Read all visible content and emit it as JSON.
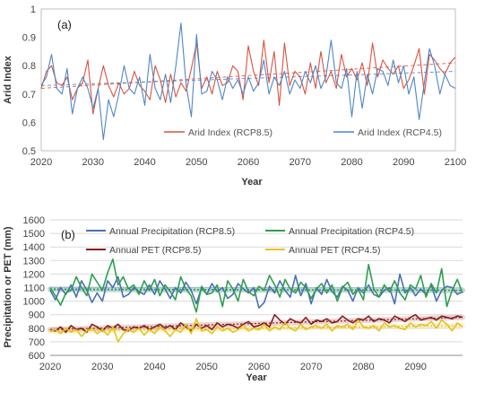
{
  "figure": {
    "panel_a_label": "(a)",
    "panel_b_label": "(b)"
  },
  "colors": {
    "rcp85": "#d9533f",
    "rcp45": "#4f86c6",
    "precip85": "#4a6fb5",
    "precip45": "#2e9e4f",
    "pet85": "#8b1d1d",
    "pet45": "#e8c21a",
    "axis": "#8c8c8c",
    "grid": "#d9d9d9"
  },
  "chart_data": [
    {
      "type": "line",
      "panel": "a",
      "title": "",
      "xlabel": "Year",
      "ylabel": "Arid Index",
      "xlim": [
        2020,
        2100
      ],
      "ylim": [
        0.5,
        1.0
      ],
      "xticks": [
        2020,
        2030,
        2040,
        2050,
        2060,
        2070,
        2080,
        2090,
        2100
      ],
      "yticks": [
        0.5,
        0.6,
        0.7,
        0.8,
        0.9,
        1.0
      ],
      "ytick_labels": [
        "0.5",
        "0.6",
        "0.7",
        "0.8",
        "0.9",
        "1"
      ],
      "grid": false,
      "legend_position": "bottom-right",
      "series": [
        {
          "name": "Arid Index (RCP8.5)",
          "x_start": 2020,
          "values": [
            0.72,
            0.78,
            0.8,
            0.74,
            0.73,
            0.76,
            0.68,
            0.72,
            0.74,
            0.82,
            0.63,
            0.72,
            0.8,
            0.73,
            0.69,
            0.74,
            0.7,
            0.72,
            0.78,
            0.73,
            0.71,
            0.68,
            0.8,
            0.75,
            0.67,
            0.77,
            0.69,
            0.74,
            0.71,
            0.79,
            0.88,
            0.72,
            0.76,
            0.7,
            0.78,
            0.73,
            0.74,
            0.8,
            0.78,
            0.68,
            0.87,
            0.78,
            0.73,
            0.89,
            0.74,
            0.85,
            0.66,
            0.88,
            0.73,
            0.78,
            0.76,
            0.7,
            0.81,
            0.72,
            0.85,
            0.74,
            0.78,
            0.72,
            0.84,
            0.76,
            0.79,
            0.75,
            0.81,
            0.73,
            0.88,
            0.76,
            0.82,
            0.79,
            0.77,
            0.8,
            0.72,
            0.75,
            0.8,
            0.86,
            0.7,
            0.84,
            0.82,
            0.79,
            0.77,
            0.81,
            0.83
          ],
          "trend": [
            0.72,
            0.81
          ]
        },
        {
          "name": "Arid Index (RCP4.5)",
          "x_start": 2020,
          "values": [
            0.73,
            0.76,
            0.84,
            0.72,
            0.7,
            0.79,
            0.63,
            0.72,
            0.76,
            0.72,
            0.65,
            0.72,
            0.54,
            0.68,
            0.62,
            0.7,
            0.8,
            0.72,
            0.7,
            0.76,
            0.66,
            0.84,
            0.72,
            0.68,
            0.77,
            0.67,
            0.8,
            0.95,
            0.73,
            0.62,
            0.91,
            0.7,
            0.71,
            0.78,
            0.75,
            0.68,
            0.76,
            0.72,
            0.75,
            0.7,
            0.76,
            0.71,
            0.74,
            0.82,
            0.7,
            0.76,
            0.73,
            0.78,
            0.7,
            0.75,
            0.72,
            0.78,
            0.74,
            0.8,
            0.72,
            0.76,
            0.89,
            0.74,
            0.72,
            0.79,
            0.62,
            0.78,
            0.65,
            0.77,
            0.7,
            0.79,
            0.78,
            0.73,
            0.82,
            0.74,
            0.8,
            0.7,
            0.76,
            0.61,
            0.74,
            0.86,
            0.8,
            0.7,
            0.77,
            0.73,
            0.72
          ],
          "trend": [
            0.73,
            0.78
          ]
        }
      ]
    },
    {
      "type": "line",
      "panel": "b",
      "title": "",
      "xlabel": "Year",
      "ylabel": "Precipitation or PET (mm)",
      "xlim": [
        2020,
        2099
      ],
      "ylim": [
        600,
        1600
      ],
      "xticks": [
        2020,
        2030,
        2040,
        2050,
        2060,
        2070,
        2080,
        2090
      ],
      "yticks": [
        600,
        700,
        800,
        900,
        1000,
        1100,
        1200,
        1300,
        1400,
        1500,
        1600
      ],
      "grid": true,
      "legend_position": "top",
      "series": [
        {
          "name": "Annual Precipitation (RCP8.5)",
          "x_start": 2020,
          "values": [
            1080,
            1010,
            1100,
            1050,
            1120,
            1030,
            1150,
            1080,
            990,
            1060,
            1000,
            1150,
            1100,
            1180,
            1030,
            1050,
            1100,
            1070,
            1050,
            1120,
            1050,
            1150,
            1090,
            1020,
            1100,
            1060,
            1140,
            1080,
            980,
            1100,
            1050,
            1130,
            1070,
            1100,
            1020,
            1050,
            1130,
            1090,
            1060,
            1100,
            950,
            990,
            1110,
            1060,
            1150,
            1080,
            1030,
            1190,
            1040,
            1130,
            980,
            1100,
            1050,
            1160,
            1070,
            1030,
            1110,
            1080,
            1000,
            1100,
            1060,
            1120,
            1050,
            1030,
            1080,
            1100,
            980,
            1200,
            1060,
            1100,
            1040,
            1090,
            1050,
            1120,
            1000,
            1080,
            1110,
            1100,
            1050,
            1070
          ],
          "trend": [
            1090,
            1080
          ]
        },
        {
          "name": "Annual Precipitation (RCP4.5)",
          "x_start": 2020,
          "values": [
            1100,
            1040,
            970,
            1060,
            1080,
            1180,
            1100,
            1040,
            1200,
            1140,
            1080,
            1210,
            1310,
            1120,
            1180,
            1090,
            1120,
            1050,
            1150,
            1080,
            1160,
            1040,
            1120,
            1070,
            1010,
            1180,
            1090,
            1040,
            920,
            1110,
            1050,
            1060,
            1120,
            960,
            1150,
            1090,
            1000,
            1160,
            1070,
            1040,
            1110,
            1080,
            1190,
            1120,
            1030,
            1160,
            1090,
            1060,
            1140,
            1100,
            1020,
            1090,
            1130,
            1060,
            1120,
            1000,
            1100,
            1140,
            1050,
            1090,
            1010,
            1270,
            1090,
            1030,
            1120,
            1070,
            1150,
            1060,
            1010,
            1120,
            1090,
            1190,
            1030,
            1130,
            1060,
            1240,
            960,
            1080,
            1160,
            1060
          ],
          "trend": [
            1085,
            1080
          ]
        },
        {
          "name": "Annual PET (RCP8.5)",
          "x_start": 2020,
          "values": [
            790,
            780,
            810,
            770,
            820,
            790,
            800,
            770,
            830,
            810,
            780,
            820,
            800,
            830,
            790,
            780,
            810,
            800,
            820,
            790,
            810,
            830,
            800,
            820,
            790,
            840,
            810,
            780,
            830,
            800,
            820,
            790,
            840,
            810,
            830,
            820,
            800,
            830,
            850,
            810,
            820,
            840,
            810,
            900,
            860,
            830,
            870,
            850,
            840,
            880,
            830,
            860,
            850,
            870,
            840,
            850,
            890,
            860,
            840,
            870,
            860,
            890,
            850,
            870,
            860,
            840,
            890,
            870,
            850,
            880,
            900,
            860,
            870,
            880,
            860,
            890,
            880,
            870,
            890,
            880
          ],
          "trend": [
            790,
            880
          ]
        },
        {
          "name": "Annual PET (RCP4.5)",
          "x_start": 2020,
          "values": [
            780,
            790,
            760,
            800,
            770,
            790,
            740,
            780,
            800,
            760,
            790,
            750,
            810,
            700,
            760,
            790,
            770,
            800,
            750,
            790,
            760,
            810,
            780,
            740,
            790,
            770,
            830,
            760,
            870,
            780,
            790,
            760,
            810,
            780,
            800,
            770,
            790,
            820,
            780,
            800,
            790,
            830,
            780,
            810,
            790,
            840,
            800,
            780,
            830,
            790,
            810,
            820,
            800,
            830,
            780,
            820,
            810,
            830,
            790,
            860,
            810,
            800,
            820,
            780,
            840,
            810,
            820,
            800,
            790,
            840,
            810,
            830,
            820,
            850,
            800,
            860,
            830,
            780,
            840,
            810
          ],
          "trend": [
            780,
            820
          ]
        }
      ]
    }
  ]
}
